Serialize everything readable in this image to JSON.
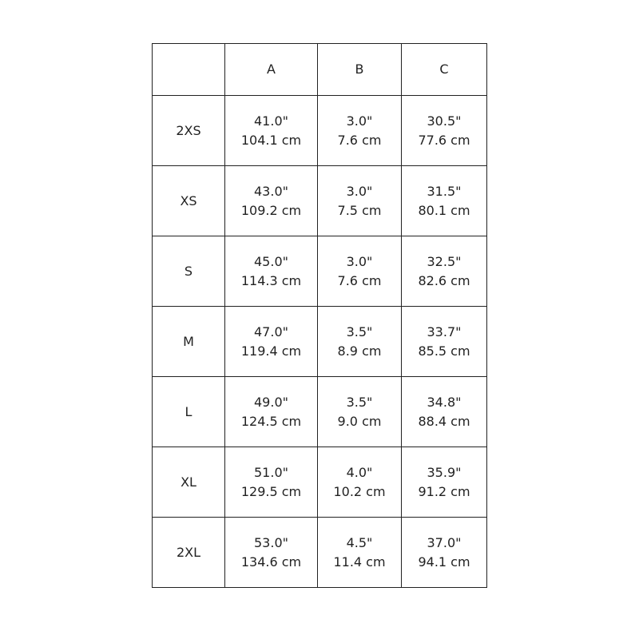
{
  "table": {
    "columns": [
      "A",
      "B",
      "C"
    ],
    "rows": [
      {
        "size": "2XS",
        "cells": [
          [
            "41.0\"",
            "104.1 cm"
          ],
          [
            "3.0\"",
            "7.6 cm"
          ],
          [
            "30.5\"",
            "77.6 cm"
          ]
        ]
      },
      {
        "size": "XS",
        "cells": [
          [
            "43.0\"",
            "109.2 cm"
          ],
          [
            "3.0\"",
            "7.5 cm"
          ],
          [
            "31.5\"",
            "80.1 cm"
          ]
        ]
      },
      {
        "size": "S",
        "cells": [
          [
            "45.0\"",
            "114.3 cm"
          ],
          [
            "3.0\"",
            "7.6 cm"
          ],
          [
            "32.5\"",
            "82.6 cm"
          ]
        ]
      },
      {
        "size": "M",
        "cells": [
          [
            "47.0\"",
            "119.4 cm"
          ],
          [
            "3.5\"",
            "8.9 cm"
          ],
          [
            "33.7\"",
            "85.5 cm"
          ]
        ]
      },
      {
        "size": "L",
        "cells": [
          [
            "49.0\"",
            "124.5 cm"
          ],
          [
            "3.5\"",
            "9.0 cm"
          ],
          [
            "34.8\"",
            "88.4 cm"
          ]
        ]
      },
      {
        "size": "XL",
        "cells": [
          [
            "51.0\"",
            "129.5 cm"
          ],
          [
            "4.0\"",
            "10.2 cm"
          ],
          [
            "35.9\"",
            "91.2 cm"
          ]
        ]
      },
      {
        "size": "2XL",
        "cells": [
          [
            "53.0\"",
            "134.6 cm"
          ],
          [
            "4.5\"",
            "11.4 cm"
          ],
          [
            "37.0\"",
            "94.1 cm"
          ]
        ]
      }
    ]
  }
}
